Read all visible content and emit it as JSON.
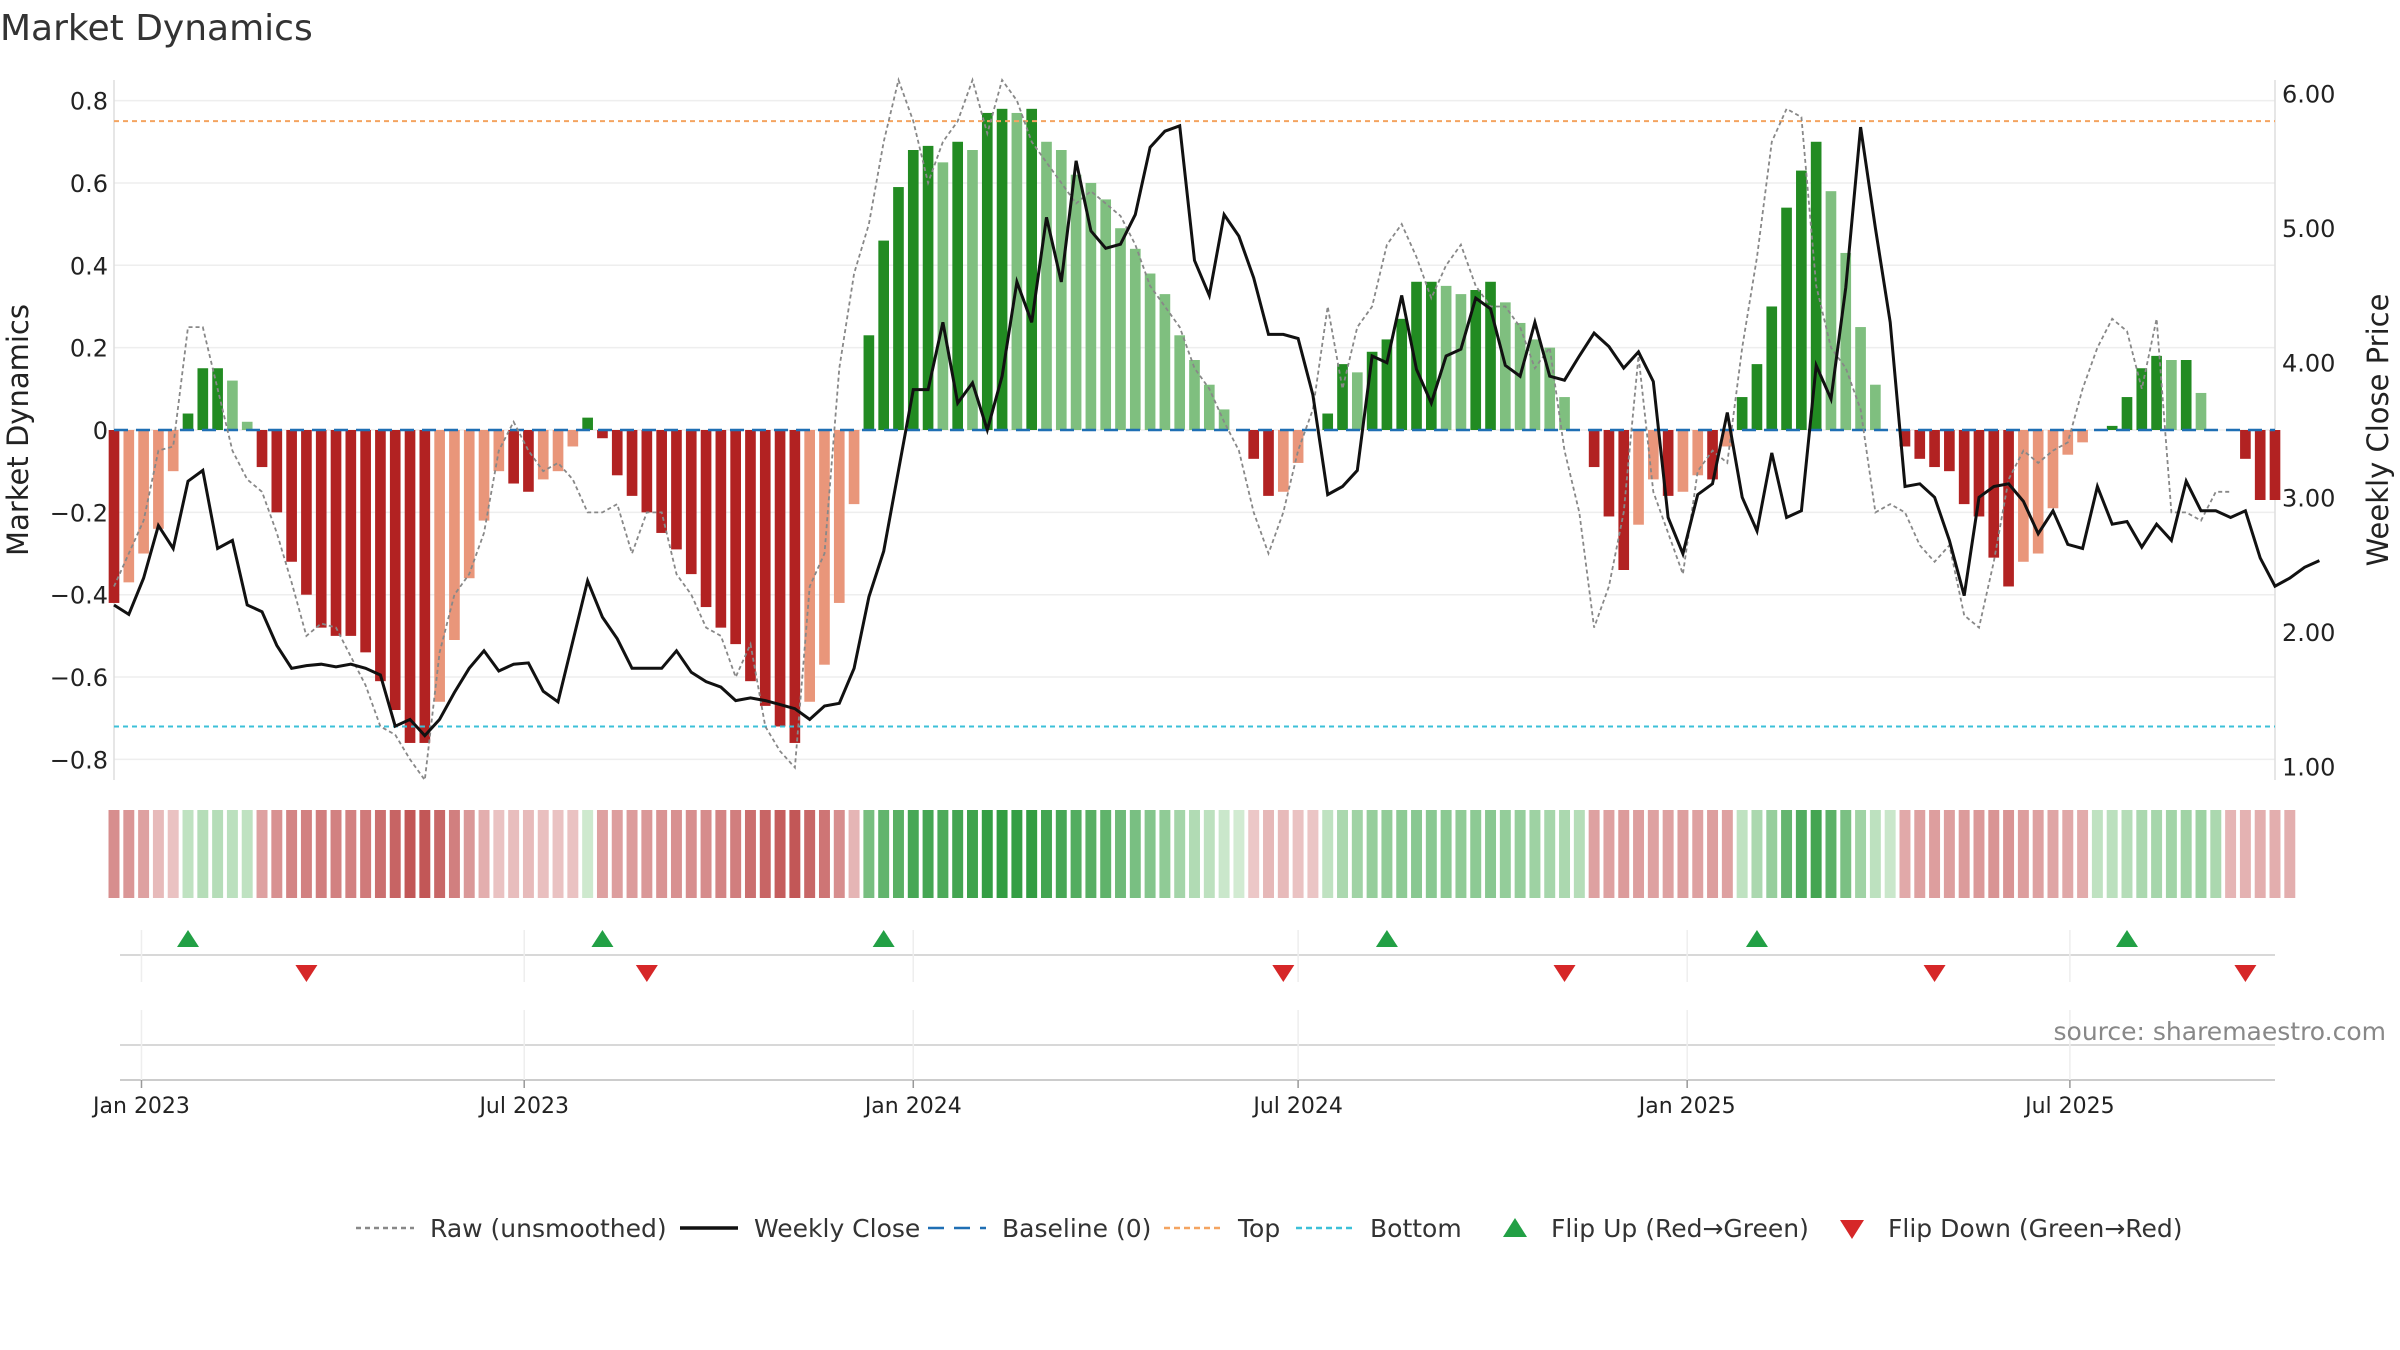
{
  "chart_data": {
    "type": "bar",
    "title": "Market Dynamics",
    "ylabel_left": "Market Dynamics",
    "ylabel_right": "Weekly Close Price",
    "ylim_left": [
      -0.85,
      0.85
    ],
    "ylim_right": [
      0.9,
      6.1
    ],
    "yticks_left": [
      "0.8",
      "0.6",
      "0.4",
      "0.2",
      "0",
      "−0.2",
      "−0.4",
      "−0.6",
      "−0.8"
    ],
    "yticks_right": [
      "6.00",
      "5.00",
      "4.00",
      "3.00",
      "2.00",
      "1.00"
    ],
    "x_start": "2022-12-19",
    "x_end": "2025-10-06",
    "xticks": [
      {
        "date": "2023-01-01",
        "label": "Jan 2023"
      },
      {
        "date": "2023-07-01",
        "label": "Jul 2023"
      },
      {
        "date": "2024-01-01",
        "label": "Jan 2024"
      },
      {
        "date": "2024-07-01",
        "label": "Jul 2024"
      },
      {
        "date": "2025-01-01",
        "label": "Jan 2025"
      },
      {
        "date": "2025-07-01",
        "label": "Jul 2025"
      }
    ],
    "first_week": "2022-12-19",
    "grid": true,
    "top_level": 0.75,
    "bottom_level": -0.72,
    "baseline": 0,
    "dynamics": [
      -0.42,
      -0.37,
      -0.3,
      -0.24,
      -0.1,
      0.04,
      0.15,
      0.15,
      0.12,
      0.02,
      -0.09,
      -0.2,
      -0.32,
      -0.4,
      -0.48,
      -0.5,
      -0.5,
      -0.54,
      -0.61,
      -0.68,
      -0.76,
      -0.76,
      -0.66,
      -0.51,
      -0.36,
      -0.22,
      -0.1,
      -0.13,
      -0.15,
      -0.12,
      -0.1,
      -0.04,
      0.03,
      -0.02,
      -0.11,
      -0.16,
      -0.2,
      -0.25,
      -0.29,
      -0.35,
      -0.43,
      -0.48,
      -0.52,
      -0.61,
      -0.67,
      -0.72,
      -0.76,
      -0.66,
      -0.57,
      -0.42,
      -0.18,
      0.23,
      0.46,
      0.59,
      0.68,
      0.69,
      0.65,
      0.7,
      0.68,
      0.77,
      0.78,
      0.77,
      0.78,
      0.7,
      0.68,
      0.62,
      0.6,
      0.56,
      0.49,
      0.44,
      0.38,
      0.33,
      0.23,
      0.17,
      0.11,
      0.05,
      0,
      -0.07,
      -0.16,
      -0.15,
      -0.08,
      0,
      0.04,
      0.16,
      0.14,
      0.19,
      0.22,
      0.27,
      0.36,
      0.36,
      0.35,
      0.33,
      0.34,
      0.36,
      0.31,
      0.26,
      0.22,
      0.2,
      0.08,
      0,
      -0.09,
      -0.21,
      -0.34,
      -0.23,
      -0.12,
      -0.16,
      -0.15,
      -0.11,
      -0.12,
      -0.04,
      0.08,
      0.16,
      0.3,
      0.54,
      0.63,
      0.7,
      0.58,
      0.43,
      0.25,
      0.11,
      0,
      -0.04,
      -0.07,
      -0.09,
      -0.1,
      -0.18,
      -0.21,
      -0.31,
      -0.38,
      -0.32,
      -0.3,
      -0.19,
      -0.06,
      -0.03,
      0,
      0.01,
      0.08,
      0.15,
      0.18,
      0.17,
      0.17,
      0.09,
      0,
      0,
      -0.07,
      -0.17,
      -0.17
    ],
    "raw": [
      -0.38,
      -0.3,
      -0.22,
      -0.05,
      -0.04,
      0.25,
      0.25,
      0.1,
      -0.05,
      -0.12,
      -0.15,
      -0.25,
      -0.37,
      -0.5,
      -0.47,
      -0.48,
      -0.55,
      -0.62,
      -0.72,
      -0.74,
      -0.8,
      -0.85,
      -0.54,
      -0.4,
      -0.35,
      -0.25,
      -0.05,
      0.02,
      -0.05,
      -0.1,
      -0.08,
      -0.12,
      -0.2,
      -0.2,
      -0.18,
      -0.3,
      -0.2,
      -0.2,
      -0.35,
      -0.4,
      -0.48,
      -0.5,
      -0.6,
      -0.52,
      -0.72,
      -0.78,
      -0.82,
      -0.38,
      -0.3,
      0.15,
      0.38,
      0.5,
      0.7,
      0.85,
      0.75,
      0.6,
      0.7,
      0.75,
      0.85,
      0.72,
      0.85,
      0.8,
      0.7,
      0.65,
      0.6,
      0.55,
      0.58,
      0.55,
      0.52,
      0.45,
      0.35,
      0.3,
      0.25,
      0.15,
      0.1,
      0.02,
      -0.05,
      -0.2,
      -0.3,
      -0.2,
      -0.05,
      0.05,
      0.3,
      0.1,
      0.25,
      0.3,
      0.45,
      0.5,
      0.42,
      0.32,
      0.4,
      0.45,
      0.35,
      0.3,
      0.3,
      0.25,
      0.15,
      0.2,
      -0.05,
      -0.2,
      -0.48,
      -0.38,
      -0.2,
      0.18,
      -0.15,
      -0.25,
      -0.35,
      -0.1,
      -0.05,
      -0.08,
      0.2,
      0.42,
      0.7,
      0.78,
      0.76,
      0.35,
      0.2,
      0.15,
      0.05,
      -0.2,
      -0.18,
      -0.2,
      -0.28,
      -0.32,
      -0.28,
      -0.45,
      -0.48,
      -0.32,
      -0.12,
      -0.05,
      -0.08,
      -0.05,
      -0.03,
      0.1,
      0.2,
      0.27,
      0.24,
      0.1,
      0.27,
      -0.2,
      -0.2,
      -0.22,
      -0.15,
      -0.15
    ],
    "close": [
      2.2,
      2.13,
      2.4,
      2.79,
      2.62,
      3.12,
      3.2,
      2.62,
      2.68,
      2.2,
      2.15,
      1.9,
      1.73,
      1.75,
      1.76,
      1.74,
      1.76,
      1.73,
      1.68,
      1.3,
      1.35,
      1.23,
      1.35,
      1.55,
      1.73,
      1.86,
      1.71,
      1.76,
      1.77,
      1.56,
      1.48,
      1.93,
      2.38,
      2.11,
      1.95,
      1.73,
      1.73,
      1.73,
      1.86,
      1.7,
      1.63,
      1.59,
      1.49,
      1.51,
      1.49,
      1.46,
      1.43,
      1.35,
      1.45,
      1.47,
      1.73,
      2.26,
      2.6,
      3.2,
      3.8,
      3.8,
      4.3,
      3.7,
      3.85,
      3.5,
      3.9,
      4.6,
      4.3,
      5.08,
      4.6,
      5.5,
      4.98,
      4.85,
      4.88,
      5.1,
      5.6,
      5.72,
      5.76,
      4.76,
      4.5,
      5.1,
      4.94,
      4.63,
      4.21,
      4.21,
      4.18,
      3.76,
      3.02,
      3.08,
      3.2,
      4.05,
      4.0,
      4.5,
      3.95,
      3.7,
      4.05,
      4.1,
      4.48,
      4.4,
      3.98,
      3.9,
      4.3,
      3.9,
      3.87,
      4.05,
      4.22,
      4.12,
      3.96,
      4.08,
      3.86,
      2.85,
      2.58,
      3.02,
      3.1,
      3.63,
      3.0,
      2.75,
      3.33,
      2.85,
      2.9,
      3.98,
      3.73,
      4.56,
      5.75,
      5.0,
      4.3,
      3.08,
      3.1,
      3.0,
      2.68,
      2.27,
      3.0,
      3.08,
      3.1,
      2.97,
      2.73,
      2.9,
      2.65,
      2.62,
      3.08,
      2.8,
      2.82,
      2.63,
      2.8,
      2.68,
      3.12,
      2.9,
      2.9,
      2.85,
      2.9,
      2.55,
      2.34,
      2.4,
      2.48,
      2.53
    ],
    "strip": [
      -0.42,
      -0.37,
      -0.3,
      -0.15,
      -0.1,
      0.1,
      0.15,
      0.15,
      0.12,
      0.1,
      -0.3,
      -0.4,
      -0.48,
      -0.5,
      -0.52,
      -0.5,
      -0.5,
      -0.54,
      -0.61,
      -0.68,
      -0.76,
      -0.76,
      -0.66,
      -0.51,
      -0.36,
      -0.22,
      -0.1,
      -0.13,
      -0.15,
      -0.12,
      -0.1,
      -0.1,
      0.03,
      -0.3,
      -0.32,
      -0.34,
      -0.36,
      -0.38,
      -0.4,
      -0.42,
      -0.43,
      -0.48,
      -0.52,
      -0.61,
      -0.67,
      -0.72,
      -0.76,
      -0.66,
      -0.57,
      -0.42,
      -0.18,
      0.45,
      0.55,
      0.59,
      0.68,
      0.69,
      0.65,
      0.7,
      0.72,
      0.77,
      0.78,
      0.77,
      0.78,
      0.7,
      0.68,
      0.62,
      0.6,
      0.56,
      0.49,
      0.44,
      0.38,
      0.33,
      0.23,
      0.17,
      0.11,
      0.05,
      0.01,
      -0.07,
      -0.16,
      -0.15,
      -0.1,
      -0.08,
      0.1,
      0.2,
      0.25,
      0.3,
      0.32,
      0.34,
      0.36,
      0.36,
      0.35,
      0.33,
      0.34,
      0.36,
      0.31,
      0.3,
      0.26,
      0.22,
      0.2,
      0.15,
      -0.3,
      -0.3,
      -0.34,
      -0.32,
      -0.3,
      -0.3,
      -0.32,
      -0.3,
      -0.32,
      -0.3,
      0.1,
      0.2,
      0.3,
      0.54,
      0.63,
      0.7,
      0.58,
      0.43,
      0.25,
      0.11,
      0.05,
      -0.25,
      -0.3,
      -0.32,
      -0.32,
      -0.34,
      -0.35,
      -0.38,
      -0.38,
      -0.32,
      -0.3,
      -0.28,
      -0.26,
      -0.24,
      0.1,
      0.12,
      0.15,
      0.2,
      0.22,
      0.24,
      0.25,
      0.26,
      0.2,
      -0.18,
      -0.2,
      -0.22,
      -0.22,
      -0.22
    ],
    "flips_up": [
      "2023-01-23",
      "2023-08-07",
      "2023-12-18",
      "2024-08-12",
      "2025-02-03",
      "2025-07-28"
    ],
    "flips_down": [
      "2023-03-20",
      "2023-08-28",
      "2024-06-24",
      "2024-11-04",
      "2025-04-28",
      "2025-09-22"
    ],
    "colors": {
      "green_strong": "#228B22",
      "green_light": "#7FBF7F",
      "red_strong": "#B22222",
      "red_light": "#E9967A",
      "raw": "#888888",
      "close": "#111111",
      "baseline": "#1f6fb4",
      "top": "#F4A460",
      "bottom": "#3CC0D8",
      "flip_up": "#22A045",
      "flip_down": "#D62728"
    },
    "legend_position": "bottom-center",
    "legend": [
      {
        "label": "Raw (unsmoothed)",
        "kind": "line-dotted",
        "color": "#888888"
      },
      {
        "label": "Weekly Close",
        "kind": "line-solid",
        "color": "#111111"
      },
      {
        "label": "Baseline (0)",
        "kind": "line-dashed",
        "color": "#1f6fb4"
      },
      {
        "label": "Top",
        "kind": "line-dashed-small",
        "color": "#F4A460"
      },
      {
        "label": "Bottom",
        "kind": "line-dashed-small",
        "color": "#3CC0D8"
      },
      {
        "label": "Flip Up (Red→Green)",
        "kind": "triangle-up",
        "color": "#22A045"
      },
      {
        "label": "Flip Down (Green→Red)",
        "kind": "triangle-down",
        "color": "#D62728"
      }
    ],
    "source": "source: sharemaestro.com"
  }
}
